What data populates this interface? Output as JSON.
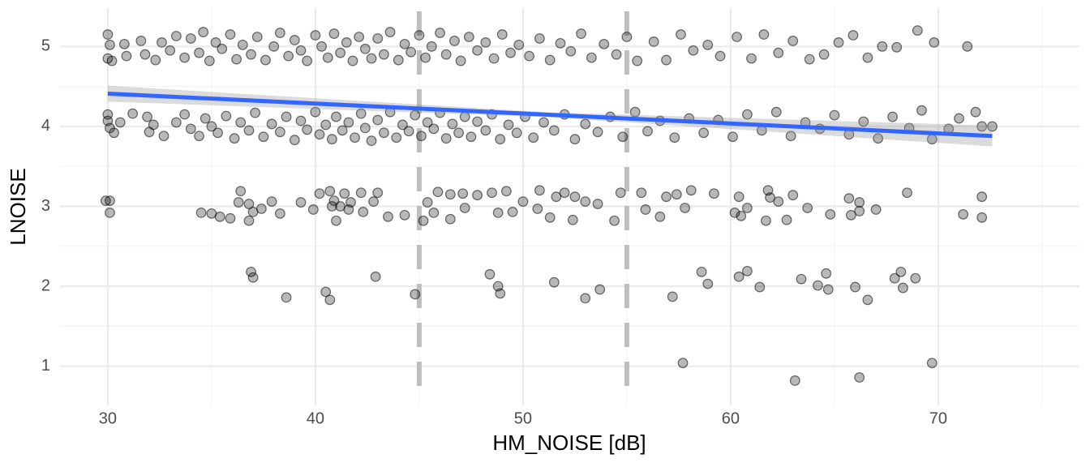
{
  "chart_data": {
    "type": "scatter",
    "xlabel": "HM_NOISE [dB]",
    "ylabel": "LNOISE",
    "xlim": [
      27.7,
      76.8
    ],
    "ylim": [
      0.51,
      5.48
    ],
    "xticks": [
      30,
      40,
      50,
      60,
      70
    ],
    "yticks": [
      1,
      2,
      3,
      4,
      5
    ],
    "xminor": [
      35,
      45,
      55,
      65,
      75
    ],
    "yminor": [
      1.5,
      2.5,
      3.5,
      4.5
    ],
    "grid": true,
    "color": "#000000",
    "vlines": [
      45,
      55
    ],
    "vline_color": "#bebebe",
    "trend": {
      "color": "#3366ff",
      "band_color": "#999999",
      "x": [
        30,
        51.3,
        72.6
      ],
      "y": [
        4.41,
        4.145,
        3.88
      ],
      "lower": [
        4.31,
        4.115,
        3.75
      ],
      "upper": [
        4.51,
        4.175,
        4.01
      ]
    },
    "x": [
      30.0,
      30.0,
      30.1,
      30.2,
      30.8,
      30.9,
      31.6,
      31.8,
      32.3,
      32.6,
      33.0,
      33.3,
      33.7,
      34.0,
      34.4,
      34.6,
      34.9,
      35.2,
      35.5,
      35.9,
      36.2,
      36.5,
      36.9,
      37.2,
      37.6,
      38.0,
      38.3,
      38.7,
      39.0,
      39.3,
      39.6,
      40.0,
      40.3,
      40.6,
      40.9,
      41.2,
      41.5,
      41.8,
      42.1,
      42.4,
      42.7,
      43.0,
      43.3,
      43.6,
      44.0,
      44.3,
      44.6,
      45.0,
      45.3,
      45.6,
      46.0,
      46.3,
      46.7,
      47.0,
      47.4,
      47.8,
      48.2,
      48.6,
      49.0,
      49.4,
      49.8,
      50.3,
      50.8,
      51.3,
      51.8,
      52.3,
      52.8,
      53.3,
      53.9,
      54.5,
      55.0,
      55.5,
      56.3,
      56.9,
      57.6,
      58.2,
      58.9,
      59.5,
      60.3,
      61.0,
      61.6,
      62.3,
      63.0,
      63.8,
      64.5,
      65.2,
      65.9,
      66.6,
      67.3,
      68.0,
      69.0,
      69.8,
      71.4,
      30.0,
      30.1,
      30.0,
      30.3,
      30.6,
      31.2,
      31.9,
      32.0,
      32.2,
      32.7,
      33.3,
      33.7,
      34.0,
      34.4,
      34.7,
      35.0,
      35.3,
      35.7,
      36.1,
      36.4,
      36.8,
      37.1,
      37.5,
      37.9,
      38.3,
      38.6,
      39.0,
      39.3,
      39.6,
      40.0,
      40.2,
      40.5,
      40.8,
      41.0,
      41.3,
      41.6,
      41.9,
      42.2,
      42.4,
      42.7,
      43.0,
      43.3,
      43.6,
      43.9,
      44.2,
      44.5,
      44.8,
      45.1,
      45.4,
      45.7,
      46.0,
      46.3,
      46.6,
      46.9,
      47.2,
      47.5,
      47.8,
      48.2,
      48.5,
      48.9,
      49.3,
      49.7,
      50.1,
      50.5,
      51.0,
      51.5,
      52.0,
      52.5,
      53.0,
      53.6,
      54.2,
      54.8,
      55.4,
      56.0,
      56.6,
      57.3,
      58.0,
      58.7,
      59.4,
      60.1,
      60.8,
      61.5,
      62.2,
      62.9,
      63.6,
      64.3,
      65.0,
      65.7,
      66.4,
      67.1,
      67.8,
      68.6,
      69.2,
      69.7,
      70.5,
      71.0,
      71.8,
      72.1,
      72.6,
      29.9,
      30.1,
      30.1,
      34.5,
      35.0,
      35.4,
      35.9,
      36.4,
      36.3,
      36.8,
      36.8,
      37.0,
      37.4,
      37.9,
      38.3,
      39.3,
      39.9,
      40.2,
      40.7,
      40.8,
      40.9,
      41.0,
      41.2,
      41.4,
      41.7,
      41.6,
      42.2,
      42.3,
      42.8,
      43.0,
      43.5,
      44.3,
      45.2,
      45.4,
      45.9,
      45.7,
      46.5,
      46.5,
      47.1,
      47.2,
      47.8,
      48.5,
      48.8,
      49.2,
      49.5,
      50.0,
      50.7,
      50.8,
      51.3,
      51.6,
      52.0,
      52.4,
      52.5,
      53.0,
      53.6,
      54.4,
      54.7,
      55.7,
      55.9,
      56.6,
      56.9,
      57.4,
      57.8,
      58.1,
      59.2,
      60.2,
      60.4,
      60.5,
      60.8,
      61.7,
      61.8,
      61.9,
      62.3,
      62.7,
      63.0,
      63.7,
      64.8,
      65.7,
      65.8,
      66.2,
      66.2,
      67.0,
      68.5,
      71.2,
      72.1,
      72.1,
      36.9,
      37.0,
      38.6,
      40.5,
      40.7,
      42.9,
      44.8,
      48.4,
      48.8,
      48.9,
      51.5,
      53.0,
      53.7,
      57.2,
      58.6,
      58.9,
      60.4,
      60.8,
      61.4,
      63.4,
      64.2,
      64.6,
      64.7,
      66.0,
      66.6,
      67.9,
      68.2,
      68.3,
      68.9,
      57.7,
      63.1,
      66.2,
      69.7
    ],
    "y": [
      5.15,
      4.85,
      5.02,
      4.82,
      5.03,
      4.88,
      5.07,
      4.9,
      4.83,
      5.05,
      4.95,
      5.13,
      4.86,
      5.1,
      4.92,
      5.18,
      4.82,
      5.05,
      4.97,
      5.15,
      4.84,
      5.02,
      4.9,
      5.12,
      4.83,
      5.0,
      5.17,
      4.88,
      5.08,
      4.95,
      4.82,
      5.14,
      5.0,
      4.86,
      5.16,
      4.92,
      5.05,
      4.82,
      5.12,
      4.97,
      4.85,
      5.1,
      4.9,
      5.18,
      4.83,
      5.03,
      4.93,
      5.14,
      4.86,
      5.0,
      5.17,
      4.9,
      5.07,
      4.82,
      5.12,
      4.95,
      5.05,
      4.85,
      5.15,
      4.92,
      5.02,
      4.88,
      5.1,
      4.83,
      5.04,
      4.94,
      5.16,
      4.86,
      5.03,
      4.9,
      5.12,
      4.82,
      5.06,
      4.83,
      5.15,
      4.95,
      5.02,
      4.88,
      5.12,
      4.85,
      5.15,
      4.92,
      5.07,
      4.84,
      4.9,
      5.05,
      5.14,
      4.86,
      5.0,
      4.99,
      5.2,
      5.05,
      5.0,
      4.15,
      3.98,
      4.07,
      3.92,
      4.05,
      4.16,
      4.12,
      3.93,
      4.02,
      3.88,
      4.05,
      4.15,
      3.97,
      3.88,
      4.1,
      4.0,
      3.92,
      4.13,
      3.85,
      4.05,
      3.95,
      4.17,
      3.87,
      4.03,
      3.93,
      4.12,
      3.83,
      4.07,
      3.96,
      4.18,
      3.9,
      4.02,
      3.84,
      4.12,
      3.95,
      4.05,
      3.86,
      4.16,
      3.98,
      3.82,
      4.08,
      3.92,
      4.18,
      3.86,
      4.02,
      3.94,
      4.14,
      3.88,
      4.05,
      3.97,
      4.17,
      3.85,
      4.03,
      3.92,
      4.12,
      3.87,
      4.06,
      3.95,
      4.15,
      3.84,
      4.02,
      3.92,
      4.12,
      3.86,
      4.05,
      3.95,
      4.15,
      3.84,
      4.03,
      3.93,
      4.12,
      3.87,
      4.18,
      3.94,
      4.07,
      3.86,
      4.1,
      3.92,
      4.08,
      3.87,
      4.15,
      3.95,
      4.18,
      3.88,
      4.05,
      3.97,
      4.14,
      3.9,
      4.06,
      3.85,
      4.12,
      3.98,
      4.2,
      3.84,
      3.97,
      4.1,
      4.18,
      4.0,
      4.0,
      3.07,
      3.07,
      2.92,
      2.92,
      2.91,
      2.87,
      2.85,
      3.19,
      3.05,
      3.03,
      2.82,
      2.93,
      2.97,
      3.06,
      2.91,
      3.05,
      2.96,
      3.16,
      3.19,
      3.0,
      3.07,
      2.82,
      3.0,
      3.16,
      3.05,
      2.96,
      3.17,
      2.93,
      3.06,
      3.17,
      2.87,
      2.89,
      2.82,
      3.05,
      3.18,
      2.92,
      2.84,
      3.15,
      3.16,
      2.98,
      3.14,
      3.17,
      2.92,
      3.19,
      2.93,
      3.06,
      2.97,
      3.2,
      2.86,
      3.12,
      3.17,
      2.83,
      3.12,
      3.06,
      3.03,
      2.82,
      3.17,
      3.17,
      2.96,
      2.87,
      3.12,
      3.15,
      2.98,
      3.2,
      3.16,
      2.92,
      3.12,
      2.88,
      2.98,
      2.82,
      3.2,
      3.11,
      3.06,
      2.83,
      3.14,
      2.98,
      2.9,
      3.1,
      2.89,
      3.05,
      2.94,
      2.96,
      3.17,
      2.9,
      3.12,
      2.86,
      2.18,
      2.11,
      1.86,
      1.93,
      1.83,
      2.12,
      1.9,
      2.15,
      2.0,
      1.91,
      2.05,
      1.85,
      1.96,
      1.87,
      2.18,
      2.03,
      2.12,
      2.19,
      1.99,
      2.09,
      2.01,
      2.16,
      1.96,
      1.99,
      1.83,
      2.1,
      2.18,
      1.98,
      2.1,
      1.04,
      0.82,
      0.86,
      1.04
    ]
  }
}
